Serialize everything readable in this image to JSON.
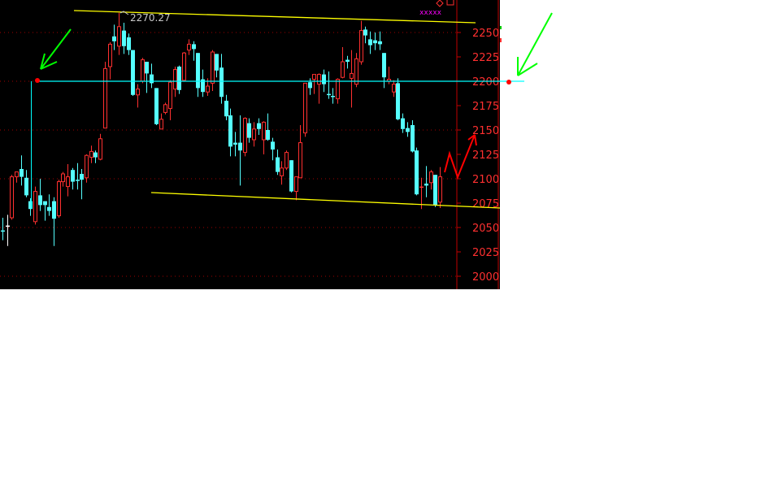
{
  "chart_data": {
    "type": "candlestick",
    "title": "",
    "xlabel": "",
    "ylabel": "",
    "ylim": [
      1985,
      2283
    ],
    "y_ticks": [
      "2000",
      "2025",
      "2050",
      "2075",
      "2100",
      "2125",
      "2150",
      "2175",
      "2200",
      "2225",
      "2250"
    ],
    "grid": "dotted horizontal at 2000, 2050, 2100, 2150, 2200, 2250",
    "up_color": "#ff3030",
    "down_color": "#55ffff",
    "candles_ohlc": [
      [
        2046,
        2060,
        2037,
        2047
      ],
      [
        2052,
        2063,
        2031,
        2052
      ],
      [
        2060,
        2104,
        2058,
        2102
      ],
      [
        2102,
        2107,
        2096,
        2107
      ],
      [
        2110,
        2124,
        2093,
        2102
      ],
      [
        2101,
        2109,
        2081,
        2083
      ],
      [
        2077,
        2080,
        2062,
        2069
      ],
      [
        2056,
        2092,
        2053,
        2087
      ],
      [
        2083,
        2100,
        2067,
        2073
      ],
      [
        2077,
        2077,
        2057,
        2073
      ],
      [
        2071,
        2084,
        2062,
        2067
      ],
      [
        2077,
        2081,
        2031,
        2059
      ],
      [
        2062,
        2099,
        2060,
        2097
      ],
      [
        2097,
        2107,
        2092,
        2105
      ],
      [
        2092,
        2115,
        2082,
        2102
      ],
      [
        2109,
        2111,
        2089,
        2097
      ],
      [
        2098,
        2116,
        2089,
        2099
      ],
      [
        2105,
        2110,
        2079,
        2099
      ],
      [
        2101,
        2125,
        2096,
        2124
      ],
      [
        2122,
        2134,
        2116,
        2128
      ],
      [
        2127,
        2129,
        2116,
        2122
      ],
      [
        2120,
        2146,
        2119,
        2141
      ],
      [
        2152,
        2220,
        2152,
        2213
      ],
      [
        2215,
        2240,
        2202,
        2238
      ],
      [
        2246,
        2258,
        2232,
        2241
      ],
      [
        2236,
        2270.27,
        2227,
        2256
      ],
      [
        2252,
        2260,
        2228,
        2236
      ],
      [
        2245,
        2249,
        2227,
        2232
      ],
      [
        2232,
        2232,
        2185,
        2186
      ],
      [
        2186,
        2197,
        2173,
        2192
      ],
      [
        2200,
        2224,
        2198,
        2222
      ],
      [
        2220,
        2220,
        2188,
        2208
      ],
      [
        2207,
        2218,
        2193,
        2198
      ],
      [
        2193,
        2193,
        2155,
        2156
      ],
      [
        2151,
        2167,
        2151,
        2161
      ],
      [
        2168,
        2178,
        2166,
        2176
      ],
      [
        2172,
        2201,
        2160,
        2199
      ],
      [
        2192,
        2215,
        2184,
        2212
      ],
      [
        2215,
        2216,
        2187,
        2191
      ],
      [
        2201,
        2230,
        2200,
        2229
      ],
      [
        2232,
        2243,
        2227,
        2238
      ],
      [
        2238,
        2241,
        2221,
        2233
      ],
      [
        2229,
        2229,
        2184,
        2193
      ],
      [
        2202,
        2212,
        2184,
        2189
      ],
      [
        2189,
        2203,
        2185,
        2195
      ],
      [
        2198,
        2232,
        2190,
        2230
      ],
      [
        2228,
        2228,
        2204,
        2211
      ],
      [
        2214,
        2228,
        2177,
        2184
      ],
      [
        2180,
        2186,
        2160,
        2164
      ],
      [
        2165,
        2172,
        2123,
        2133
      ],
      [
        2137,
        2148,
        2123,
        2135
      ],
      [
        2137,
        2165,
        2093,
        2129
      ],
      [
        2127,
        2163,
        2123,
        2162
      ],
      [
        2157,
        2162,
        2137,
        2142
      ],
      [
        2140,
        2158,
        2133,
        2151
      ],
      [
        2157,
        2162,
        2145,
        2151
      ],
      [
        2140,
        2159,
        2125,
        2158
      ],
      [
        2150,
        2167,
        2139,
        2140
      ],
      [
        2138,
        2142,
        2119,
        2130
      ],
      [
        2122,
        2130,
        2104,
        2107
      ],
      [
        2103,
        2118,
        2094,
        2111
      ],
      [
        2111,
        2129,
        2109,
        2127
      ],
      [
        2119,
        2119,
        2086,
        2087
      ],
      [
        2087,
        2102,
        2078,
        2102
      ],
      [
        2101,
        2155,
        2101,
        2137
      ],
      [
        2147,
        2198,
        2143,
        2198
      ],
      [
        2199,
        2203,
        2186,
        2193
      ],
      [
        2202,
        2207,
        2187,
        2207
      ],
      [
        2197,
        2208,
        2177,
        2207
      ],
      [
        2207,
        2212,
        2189,
        2197
      ],
      [
        2186,
        2210,
        2182,
        2187
      ],
      [
        2185,
        2193,
        2177,
        2184
      ],
      [
        2182,
        2203,
        2177,
        2202
      ],
      [
        2204,
        2235,
        2203,
        2220
      ],
      [
        2222,
        2226,
        2213,
        2220
      ],
      [
        2203,
        2232,
        2173,
        2208
      ],
      [
        2197,
        2229,
        2194,
        2223
      ],
      [
        2220,
        2262,
        2217,
        2252
      ],
      [
        2253,
        2256,
        2239,
        2247
      ],
      [
        2243,
        2251,
        2228,
        2237
      ],
      [
        2242,
        2250,
        2232,
        2239
      ],
      [
        2241,
        2251,
        2232,
        2238
      ],
      [
        2229,
        2229,
        2193,
        2204
      ],
      [
        2200,
        2215,
        2197,
        2202
      ],
      [
        2189,
        2201,
        2184,
        2197
      ],
      [
        2198,
        2203,
        2160,
        2161
      ],
      [
        2162,
        2167,
        2147,
        2151
      ],
      [
        2152,
        2158,
        2143,
        2148
      ],
      [
        2155,
        2160,
        2127,
        2128
      ],
      [
        2129,
        2132,
        2083,
        2084
      ],
      [
        2091,
        2101,
        2069,
        2092
      ],
      [
        2095,
        2113,
        2081,
        2093
      ],
      [
        2096,
        2109,
        2089,
        2107
      ],
      [
        2104,
        2104,
        2071,
        2073
      ],
      [
        2076,
        2112,
        2070,
        2102
      ]
    ],
    "annotations": {
      "high_label": "2270.27",
      "horizontal_level": 2200,
      "upper_trendline": "yellow, descending from ~2283 to ~2260",
      "lower_trendline": "yellow, descending from ~2087 to ~2070",
      "projection": "red zigzag up toward 2150",
      "arrows": "two green arrows pointing at the 2200 line endpoints",
      "top_marks": "xxxxx"
    },
    "colors": {
      "background": "#000000",
      "trendline": "#ffff00",
      "level_line": "#00ffff",
      "axis": "#c00000",
      "arrow": "#00ff00",
      "projection": "#ff0000"
    }
  }
}
